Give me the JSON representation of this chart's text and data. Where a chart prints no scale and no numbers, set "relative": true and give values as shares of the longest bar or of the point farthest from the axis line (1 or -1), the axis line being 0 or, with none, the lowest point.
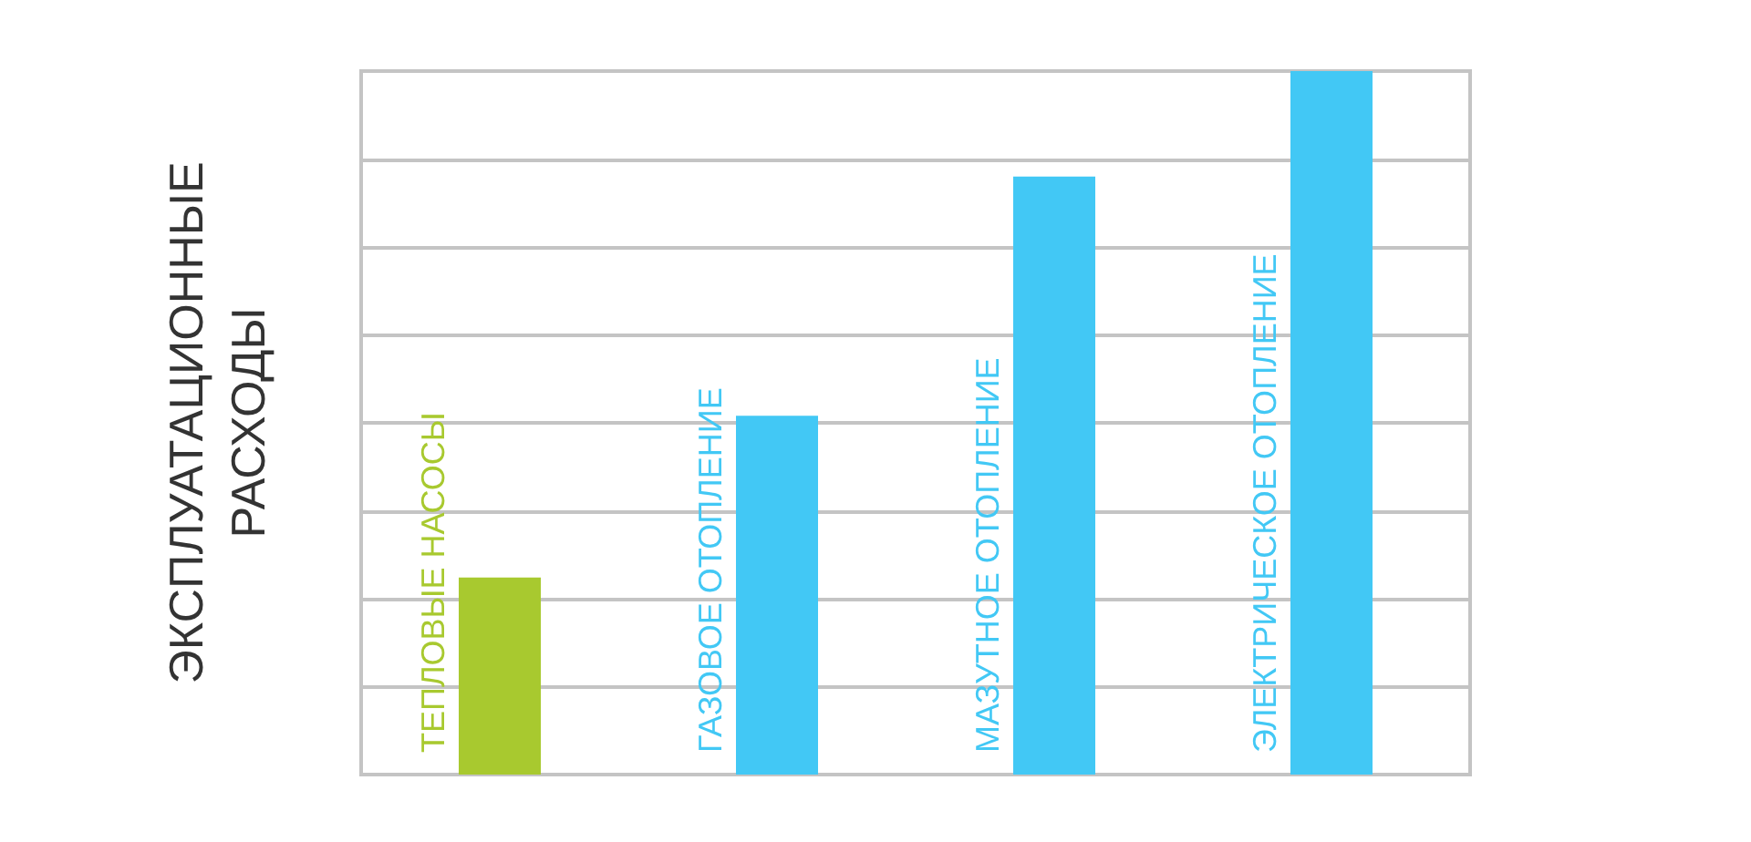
{
  "chart_data": {
    "type": "bar",
    "ylabel": "ЭКСПЛУАТАЦИОННЫЕ РАСХОДЫ",
    "categories": [
      "ТЕПЛОВЫЕ НАСОСЫ",
      "ГАЗОВОЕ ОТОПЛЕНИЕ",
      "МАЗУТНОЕ ОТОПЛЕНИЕ",
      "ЭЛЕКТРИЧЕСКОЕ ОТОПЛЕНИЕ"
    ],
    "values": [
      0.28,
      0.51,
      0.85,
      1
    ],
    "colors": [
      "#a8c92f",
      "#42c8f5",
      "#42c8f5",
      "#42c8f5"
    ],
    "relative": true,
    "grid": "y"
  }
}
